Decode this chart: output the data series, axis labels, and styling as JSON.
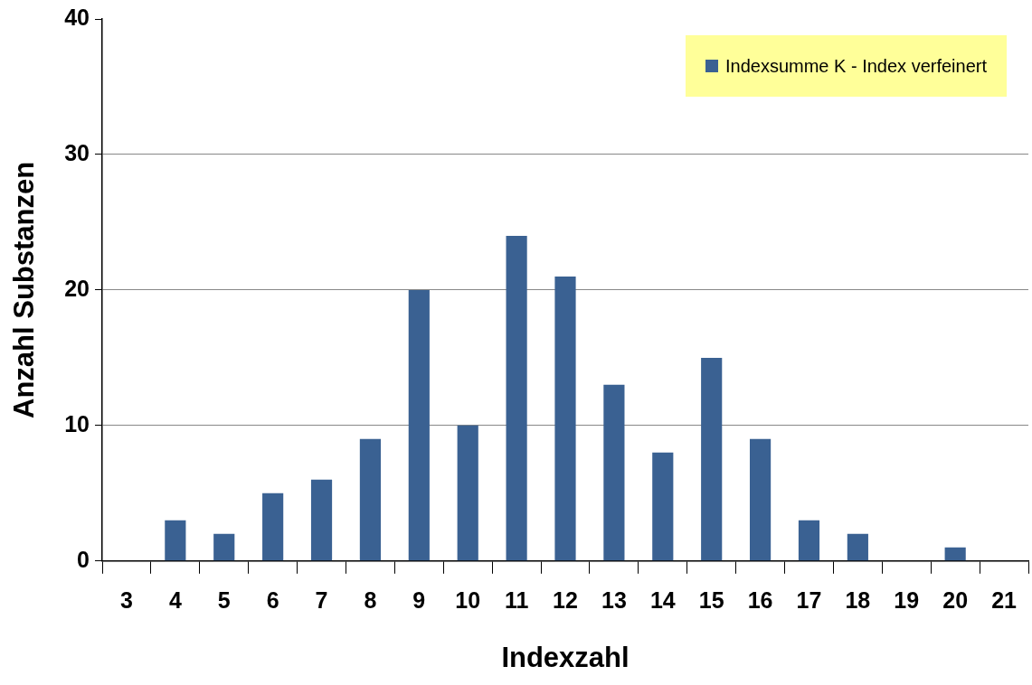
{
  "chart_data": {
    "type": "bar",
    "xlabel": "Indexzahl",
    "ylabel": "Anzahl Substanzen",
    "categories": [
      "3",
      "4",
      "5",
      "6",
      "7",
      "8",
      "9",
      "10",
      "11",
      "12",
      "13",
      "14",
      "15",
      "16",
      "17",
      "18",
      "19",
      "20",
      "21"
    ],
    "series": [
      {
        "name": "Indexsumme K - Index verfeinert",
        "color": "#3a6192",
        "values": [
          0,
          3,
          2,
          5,
          6,
          9,
          20,
          10,
          24,
          21,
          13,
          8,
          15,
          9,
          3,
          2,
          0,
          1,
          0
        ]
      }
    ],
    "ylim": [
      0,
      40
    ],
    "yticks": [
      0,
      10,
      20,
      30,
      40
    ],
    "grid": "y",
    "legend": "top right"
  }
}
